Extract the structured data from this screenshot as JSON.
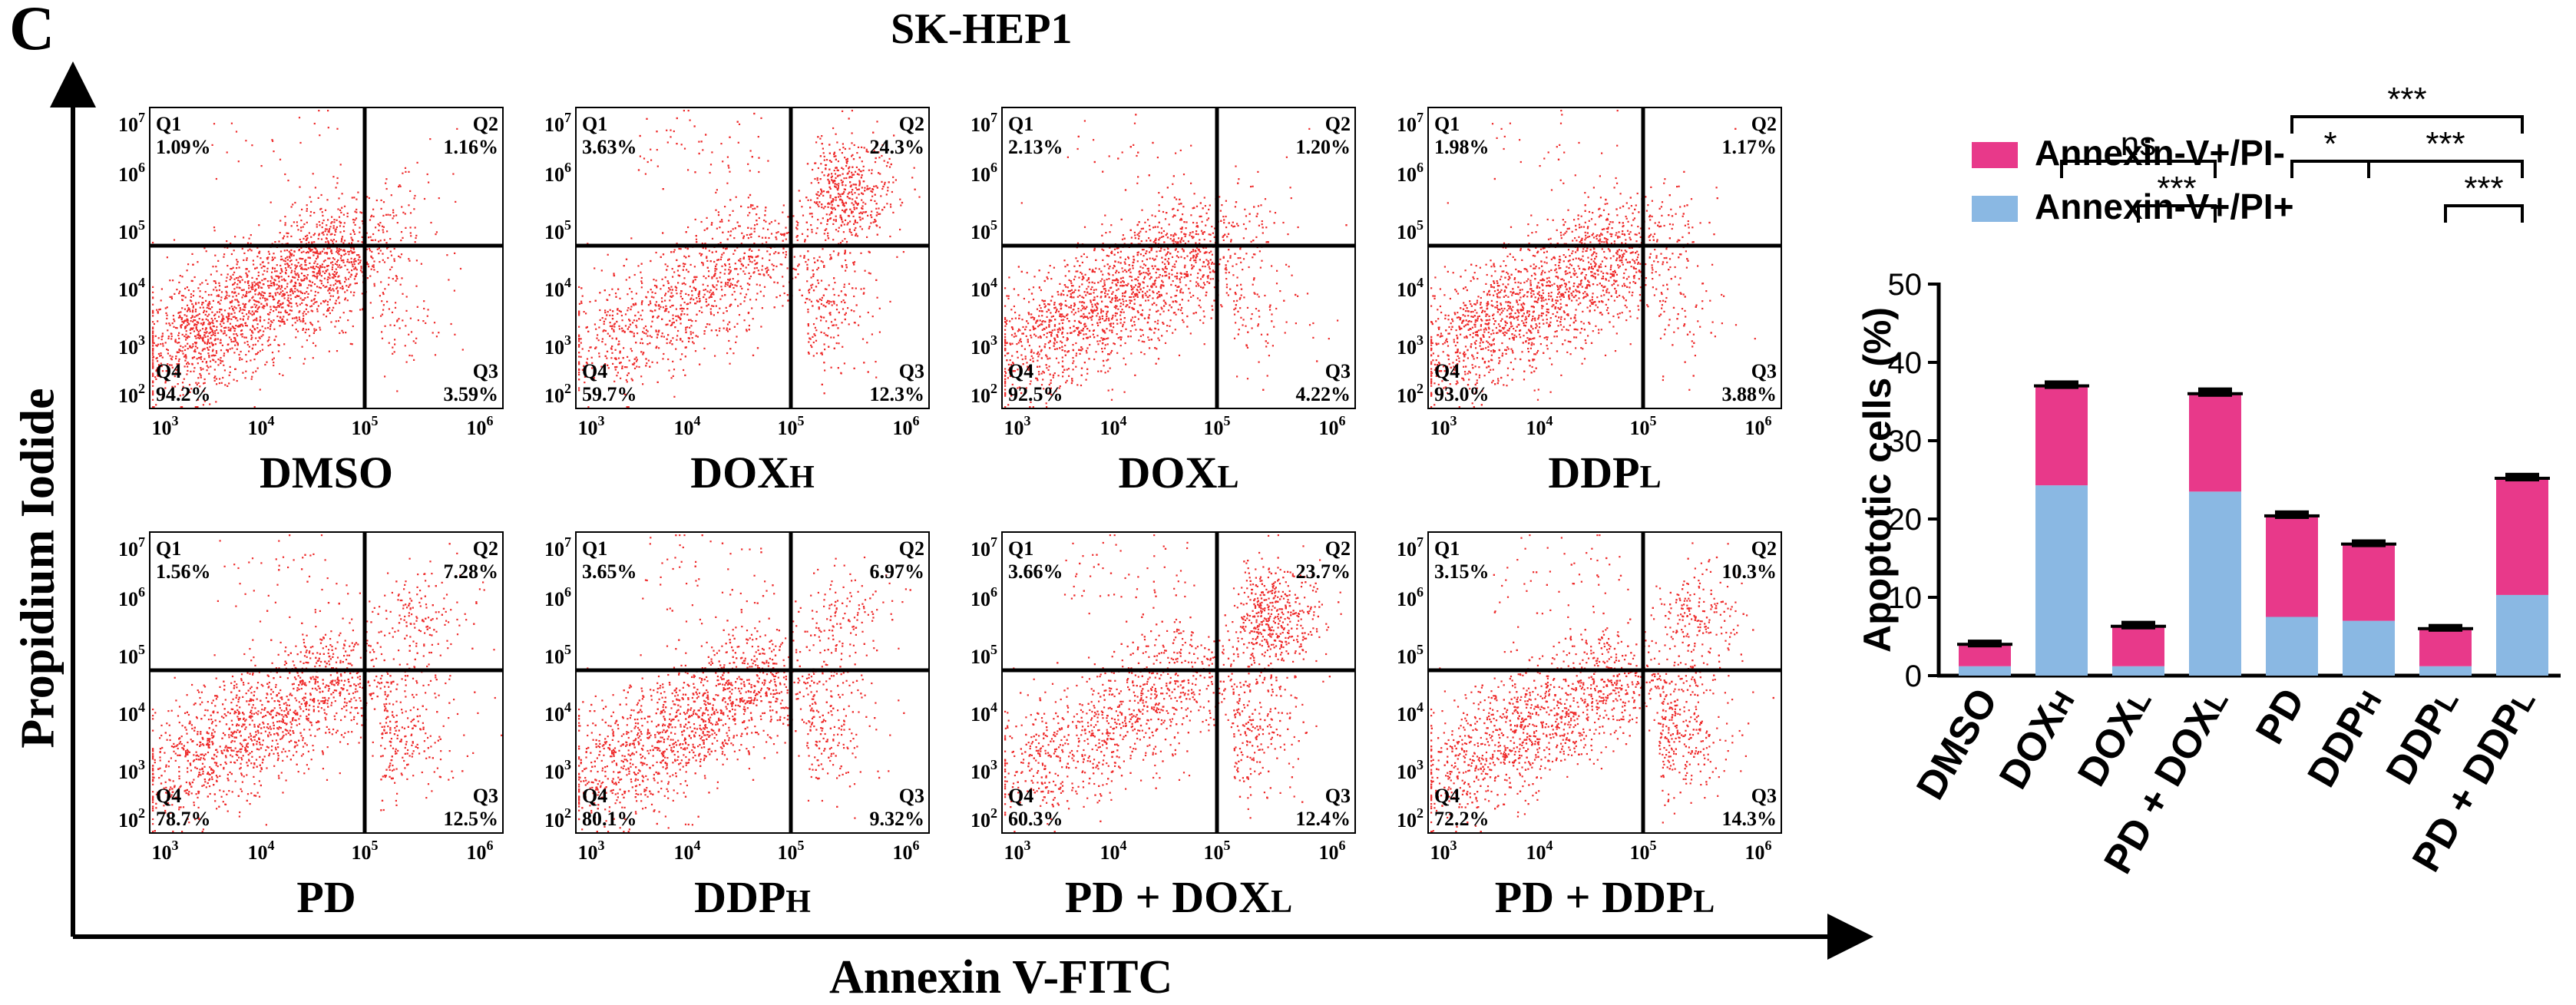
{
  "panel_label": "C",
  "title": "SK-HEP1",
  "y_axis_title": "Propidium Iodide",
  "x_axis_title": "Annexin V-FITC",
  "flow_tick_labels": [
    "10",
    "10",
    "10",
    "10",
    "10",
    "10",
    "10",
    "10",
    "10"
  ],
  "flow_x_exponents": [
    "3",
    "4",
    "5",
    "6"
  ],
  "flow_y_exponents": [
    "2",
    "3",
    "4",
    "5",
    "6",
    "7"
  ],
  "quadrant_names": [
    "Q1",
    "Q2",
    "Q3",
    "Q4"
  ],
  "flow_panels": [
    {
      "label_main": "DMSO",
      "label_sub": "",
      "q1": "1.09%",
      "q2": "1.16%",
      "q3": "3.59%",
      "q4": "94.2%"
    },
    {
      "label_main": "DOX",
      "label_sub": "H",
      "q1": "3.63%",
      "q2": "24.3%",
      "q3": "12.3%",
      "q4": "59.7%"
    },
    {
      "label_main": "DOX",
      "label_sub": "L",
      "q1": "2.13%",
      "q2": "1.20%",
      "q3": "4.22%",
      "q4": "92.5%"
    },
    {
      "label_main": "DDP",
      "label_sub": "L",
      "q1": "1.98%",
      "q2": "1.17%",
      "q3": "3.88%",
      "q4": "93.0%"
    },
    {
      "label_main": "PD",
      "label_sub": "",
      "q1": "1.56%",
      "q2": "7.28%",
      "q3": "12.5%",
      "q4": "78.7%"
    },
    {
      "label_main": "DDP",
      "label_sub": "H",
      "q1": "3.65%",
      "q2": "6.97%",
      "q3": "9.32%",
      "q4": "80.1%"
    },
    {
      "label_main": "PD + DOX",
      "label_sub": "L",
      "q1": "3.66%",
      "q2": "23.7%",
      "q3": "12.4%",
      "q4": "60.3%"
    },
    {
      "label_main": "PD + DDP",
      "label_sub": "L",
      "q1": "3.15%",
      "q2": "10.3%",
      "q3": "14.3%",
      "q4": "72.2%"
    }
  ],
  "chart_data": {
    "type": "bar",
    "stacked": true,
    "categories": [
      "DMSO",
      "DOXH",
      "DOXL",
      "PD + DOXL",
      "PD",
      "DDPH",
      "DDPL",
      "PD + DDPL"
    ],
    "series": [
      {
        "name": "Annexin-V+/PI+",
        "color": "#8ab8e3",
        "values": [
          1.2,
          24.3,
          1.2,
          23.5,
          7.5,
          7.0,
          1.2,
          10.3
        ]
      },
      {
        "name": "Annexin-V+/PI-",
        "color": "#e8398a",
        "values": [
          2.8,
          12.7,
          5.1,
          12.5,
          12.9,
          9.8,
          4.8,
          14.9
        ]
      }
    ],
    "legend_labels": [
      "Annexin-V+/PI-",
      "Annexin-V+/PI+"
    ],
    "error": [
      0.6,
      0.7,
      0.7,
      0.8,
      0.7,
      0.6,
      0.6,
      0.7
    ],
    "ylabel": "Apoptotic cells (%)",
    "ylim": [
      0,
      50
    ],
    "yticks": [
      "0",
      "10",
      "20",
      "30",
      "40",
      "50"
    ],
    "significance": [
      {
        "from": 1,
        "to": 3,
        "label": "ns",
        "level": 1
      },
      {
        "from": 2,
        "to": 3,
        "label": "***",
        "level": 0
      },
      {
        "from": 4,
        "to": 7,
        "label": "***",
        "level": 2
      },
      {
        "from": 4,
        "to": 5,
        "label": "*",
        "level": 1
      },
      {
        "from": 5,
        "to": 7,
        "label": "***",
        "level": 1
      },
      {
        "from": 6,
        "to": 7,
        "label": "***",
        "level": 0
      }
    ]
  }
}
